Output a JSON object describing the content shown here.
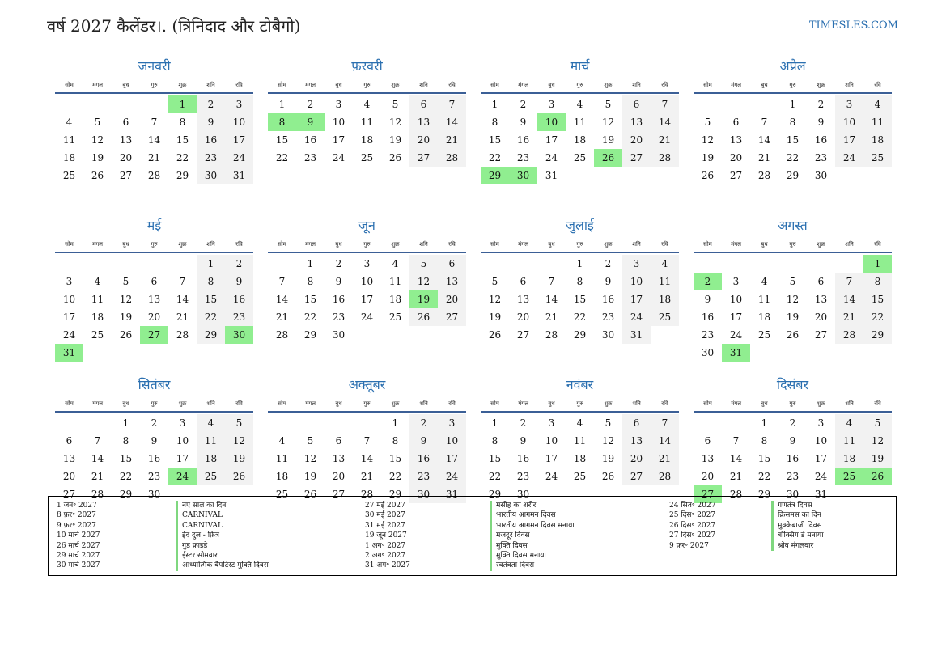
{
  "header": {
    "title": "वर्ष 2027 कैलेंडर।. (त्रिनिदाद और टोबैगो)",
    "site": "TIMESLES.COM"
  },
  "weekdays": [
    "सोम",
    "मंगल",
    "बुध",
    "गुरु",
    "शुक्र",
    "शनि",
    "रवि"
  ],
  "colors": {
    "accent": "#2a6fb0",
    "holiday": "#90ee90",
    "weekend": "#f2f2f2",
    "rule": "#3b5f96"
  },
  "months": [
    {
      "name": "जनवरी",
      "offset": 4,
      "days": 31,
      "holidays": [
        1
      ]
    },
    {
      "name": "फ़रवरी",
      "offset": 0,
      "days": 28,
      "holidays": [
        8,
        9
      ]
    },
    {
      "name": "मार्च",
      "offset": 0,
      "days": 31,
      "holidays": [
        10,
        26,
        29,
        30
      ]
    },
    {
      "name": "अप्रैल",
      "offset": 3,
      "days": 30,
      "holidays": []
    },
    {
      "name": "मई",
      "offset": 5,
      "days": 31,
      "holidays": [
        27,
        30,
        31
      ]
    },
    {
      "name": "जून",
      "offset": 1,
      "days": 30,
      "holidays": [
        19
      ]
    },
    {
      "name": "जुलाई",
      "offset": 3,
      "days": 31,
      "holidays": []
    },
    {
      "name": "अगस्त",
      "offset": 6,
      "days": 31,
      "holidays": [
        1,
        2,
        31
      ]
    },
    {
      "name": "सितंबर",
      "offset": 2,
      "days": 30,
      "holidays": [
        24
      ]
    },
    {
      "name": "अक्तूबर",
      "offset": 4,
      "days": 31,
      "holidays": []
    },
    {
      "name": "नवंबर",
      "offset": 0,
      "days": 30,
      "holidays": []
    },
    {
      "name": "दिसंबर",
      "offset": 2,
      "days": 31,
      "holidays": [
        25,
        26,
        27
      ]
    }
  ],
  "holiday_columns": [
    [
      {
        "date": "1 जन॰ 2027",
        "name": "नए साल का दिन"
      },
      {
        "date": "8 फ़र॰ 2027",
        "name": "CARNIVAL"
      },
      {
        "date": "9 फ़र॰ 2027",
        "name": "CARNIVAL"
      },
      {
        "date": "10 मार्च 2027",
        "name": "ईद दुल - फ़ित्र"
      },
      {
        "date": "26 मार्च 2027",
        "name": "गुड फ्राइडे"
      },
      {
        "date": "29 मार्च 2027",
        "name": "ईस्टर सोमवार"
      },
      {
        "date": "30 मार्च 2027",
        "name": "आध्यात्मिक बैपटिस्ट मुक्ति दिवस"
      }
    ],
    [
      {
        "date": "27 मई 2027",
        "name": "मसीह का शरीर"
      },
      {
        "date": "30 मई 2027",
        "name": "भारतीय आगमन दिवस"
      },
      {
        "date": "31 मई 2027",
        "name": "भारतीय आगमन दिवस मनाया"
      },
      {
        "date": "19 जून 2027",
        "name": "मजदूर दिवस"
      },
      {
        "date": "1 अग॰ 2027",
        "name": "मुक्ति दिवस"
      },
      {
        "date": "2 अग॰ 2027",
        "name": "मुक्ति दिवस मनाया"
      },
      {
        "date": "31 अग॰ 2027",
        "name": "स्वतंत्रता दिवस"
      }
    ],
    [
      {
        "date": "24 सित॰ 2027",
        "name": "गणतंत्र दिवस"
      },
      {
        "date": "25 दिस॰ 2027",
        "name": "क्रिसमस का दिन"
      },
      {
        "date": "26 दिस॰ 2027",
        "name": "मुक्केबाजी दिवस"
      },
      {
        "date": "27 दिस॰ 2027",
        "name": "बॉक्सिंग डे मनाया"
      },
      {
        "date": "9 फ़र॰ 2027",
        "name": "श्रोव मंगलवार"
      }
    ]
  ]
}
